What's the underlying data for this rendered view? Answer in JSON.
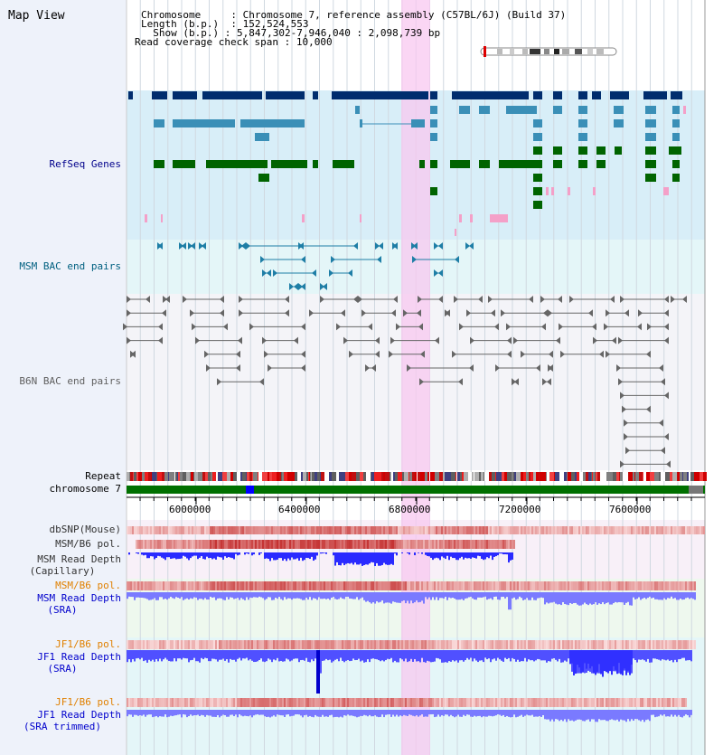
{
  "view_title": "Map View",
  "info": {
    "chromosome_label": "Chromosome",
    "chromosome_value": "Chromosome 7, reference assembly (C57BL/6J) (Build 37)",
    "length_label": "Length (b.p.)",
    "length_value": "152,524,553",
    "show_label": "Show (b.p.)",
    "show_value": "5,847,302-7,946,040 : 2,098,739 bp",
    "coverage_label": "Read coverage check span",
    "coverage_value": "10,000"
  },
  "tracks": {
    "refseq": "RefSeq Genes",
    "msm_bac": "MSM BAC end pairs",
    "b6n_bac": "B6N BAC end pairs",
    "repeat": "Repeat",
    "chromosome": "chromosome 7",
    "dbsnp": "dbSNP(Mouse)",
    "msm_b6_pol_1": "MSM/B6 pol.",
    "msm_depth_cap_1": "MSM Read Depth",
    "msm_depth_cap_2": "(Capillary)",
    "msm_b6_pol_2": "MSM/B6 pol.",
    "msm_depth_sra_1": "MSM Read Depth",
    "msm_depth_sra_2": "(SRA)",
    "jf1_b6_pol_1": "JF1/B6 pol.",
    "jf1_depth_sra_1": "JF1 Read Depth",
    "jf1_depth_sra_2": "(SRA)",
    "jf1_b6_pol_2": "JF1/B6 pol.",
    "jf1_depth_trim_1": "JF1 Read Depth",
    "jf1_depth_trim_2": "(SRA trimmed)"
  },
  "axis_ticks": [
    "6000000",
    "6400000",
    "6800000",
    "7200000",
    "7600000"
  ],
  "colors": {
    "refseq_label": "#00008b",
    "msm_bac_label": "#006080",
    "b6n_bac_label": "#606060",
    "orange_label": "#e08000",
    "blue_label": "#0000cc",
    "gene_dark": "#002d6e",
    "gene_mid": "#3a8fb7",
    "gene_green": "#006400",
    "highlight": "#f8c8f0"
  }
}
